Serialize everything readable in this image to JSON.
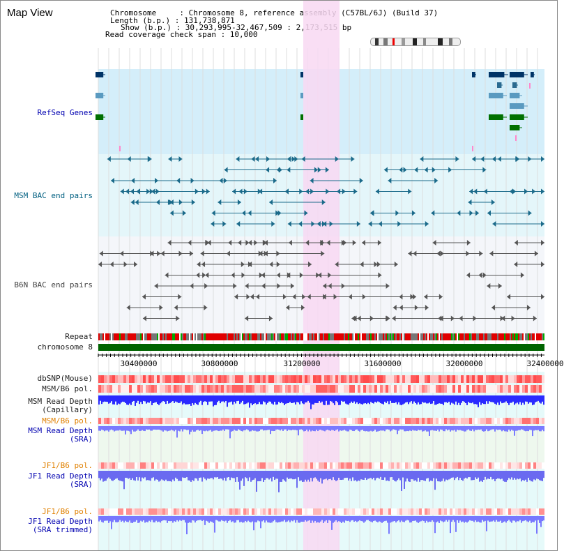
{
  "title": "Map View",
  "info": {
    "line1": "Chromosome     : Chromosome 8, reference assembly (C57BL/6J) (Build 37)",
    "line2": "Length (b.p.) : 131,738,871",
    "line3": "Show (b.p.) : 30,293,995-32,467,509 : 2,173,515 bp",
    "line4": "Read coverage check span : 10,000"
  },
  "labels": {
    "refseq": "RefSeq Genes",
    "msm_bac": "MSM BAC end pairs",
    "b6n_bac": "B6N BAC end pairs",
    "repeat": "Repeat",
    "chromosome": "chromosome 8",
    "dbsnp": "dbSNP(Mouse)",
    "msm_b6_pol_1": "MSM/B6 pol.",
    "msm_depth_cap_1": "MSM Read Depth",
    "msm_depth_cap_2": "(Capillary)",
    "msm_b6_pol_2": "MSM/B6 pol.",
    "msm_depth_sra_1": "MSM Read Depth",
    "msm_depth_sra_2": "(SRA)",
    "jf1_b6_pol_1": "JF1/B6 pol.",
    "jf1_depth_sra_1": "JF1 Read Depth",
    "jf1_depth_sra_2": "(SRA)",
    "jf1_b6_pol_2": "JF1/B6 pol.",
    "jf1_depth_trim_1": "JF1 Read Depth",
    "jf1_depth_trim_2": "(SRA trimmed)"
  },
  "ruler": {
    "ticks": [
      "30400000",
      "30800000",
      "31200000",
      "31600000",
      "32000000",
      "32400000"
    ]
  },
  "colors": {
    "refseq_bg": "#d4eefa",
    "msm_bg": "#e4f6fa",
    "b6n_bg": "#f4f6fa",
    "highlight": "#f8d8f2",
    "chromosome": "#006400",
    "depth": "#3a3aff"
  }
}
